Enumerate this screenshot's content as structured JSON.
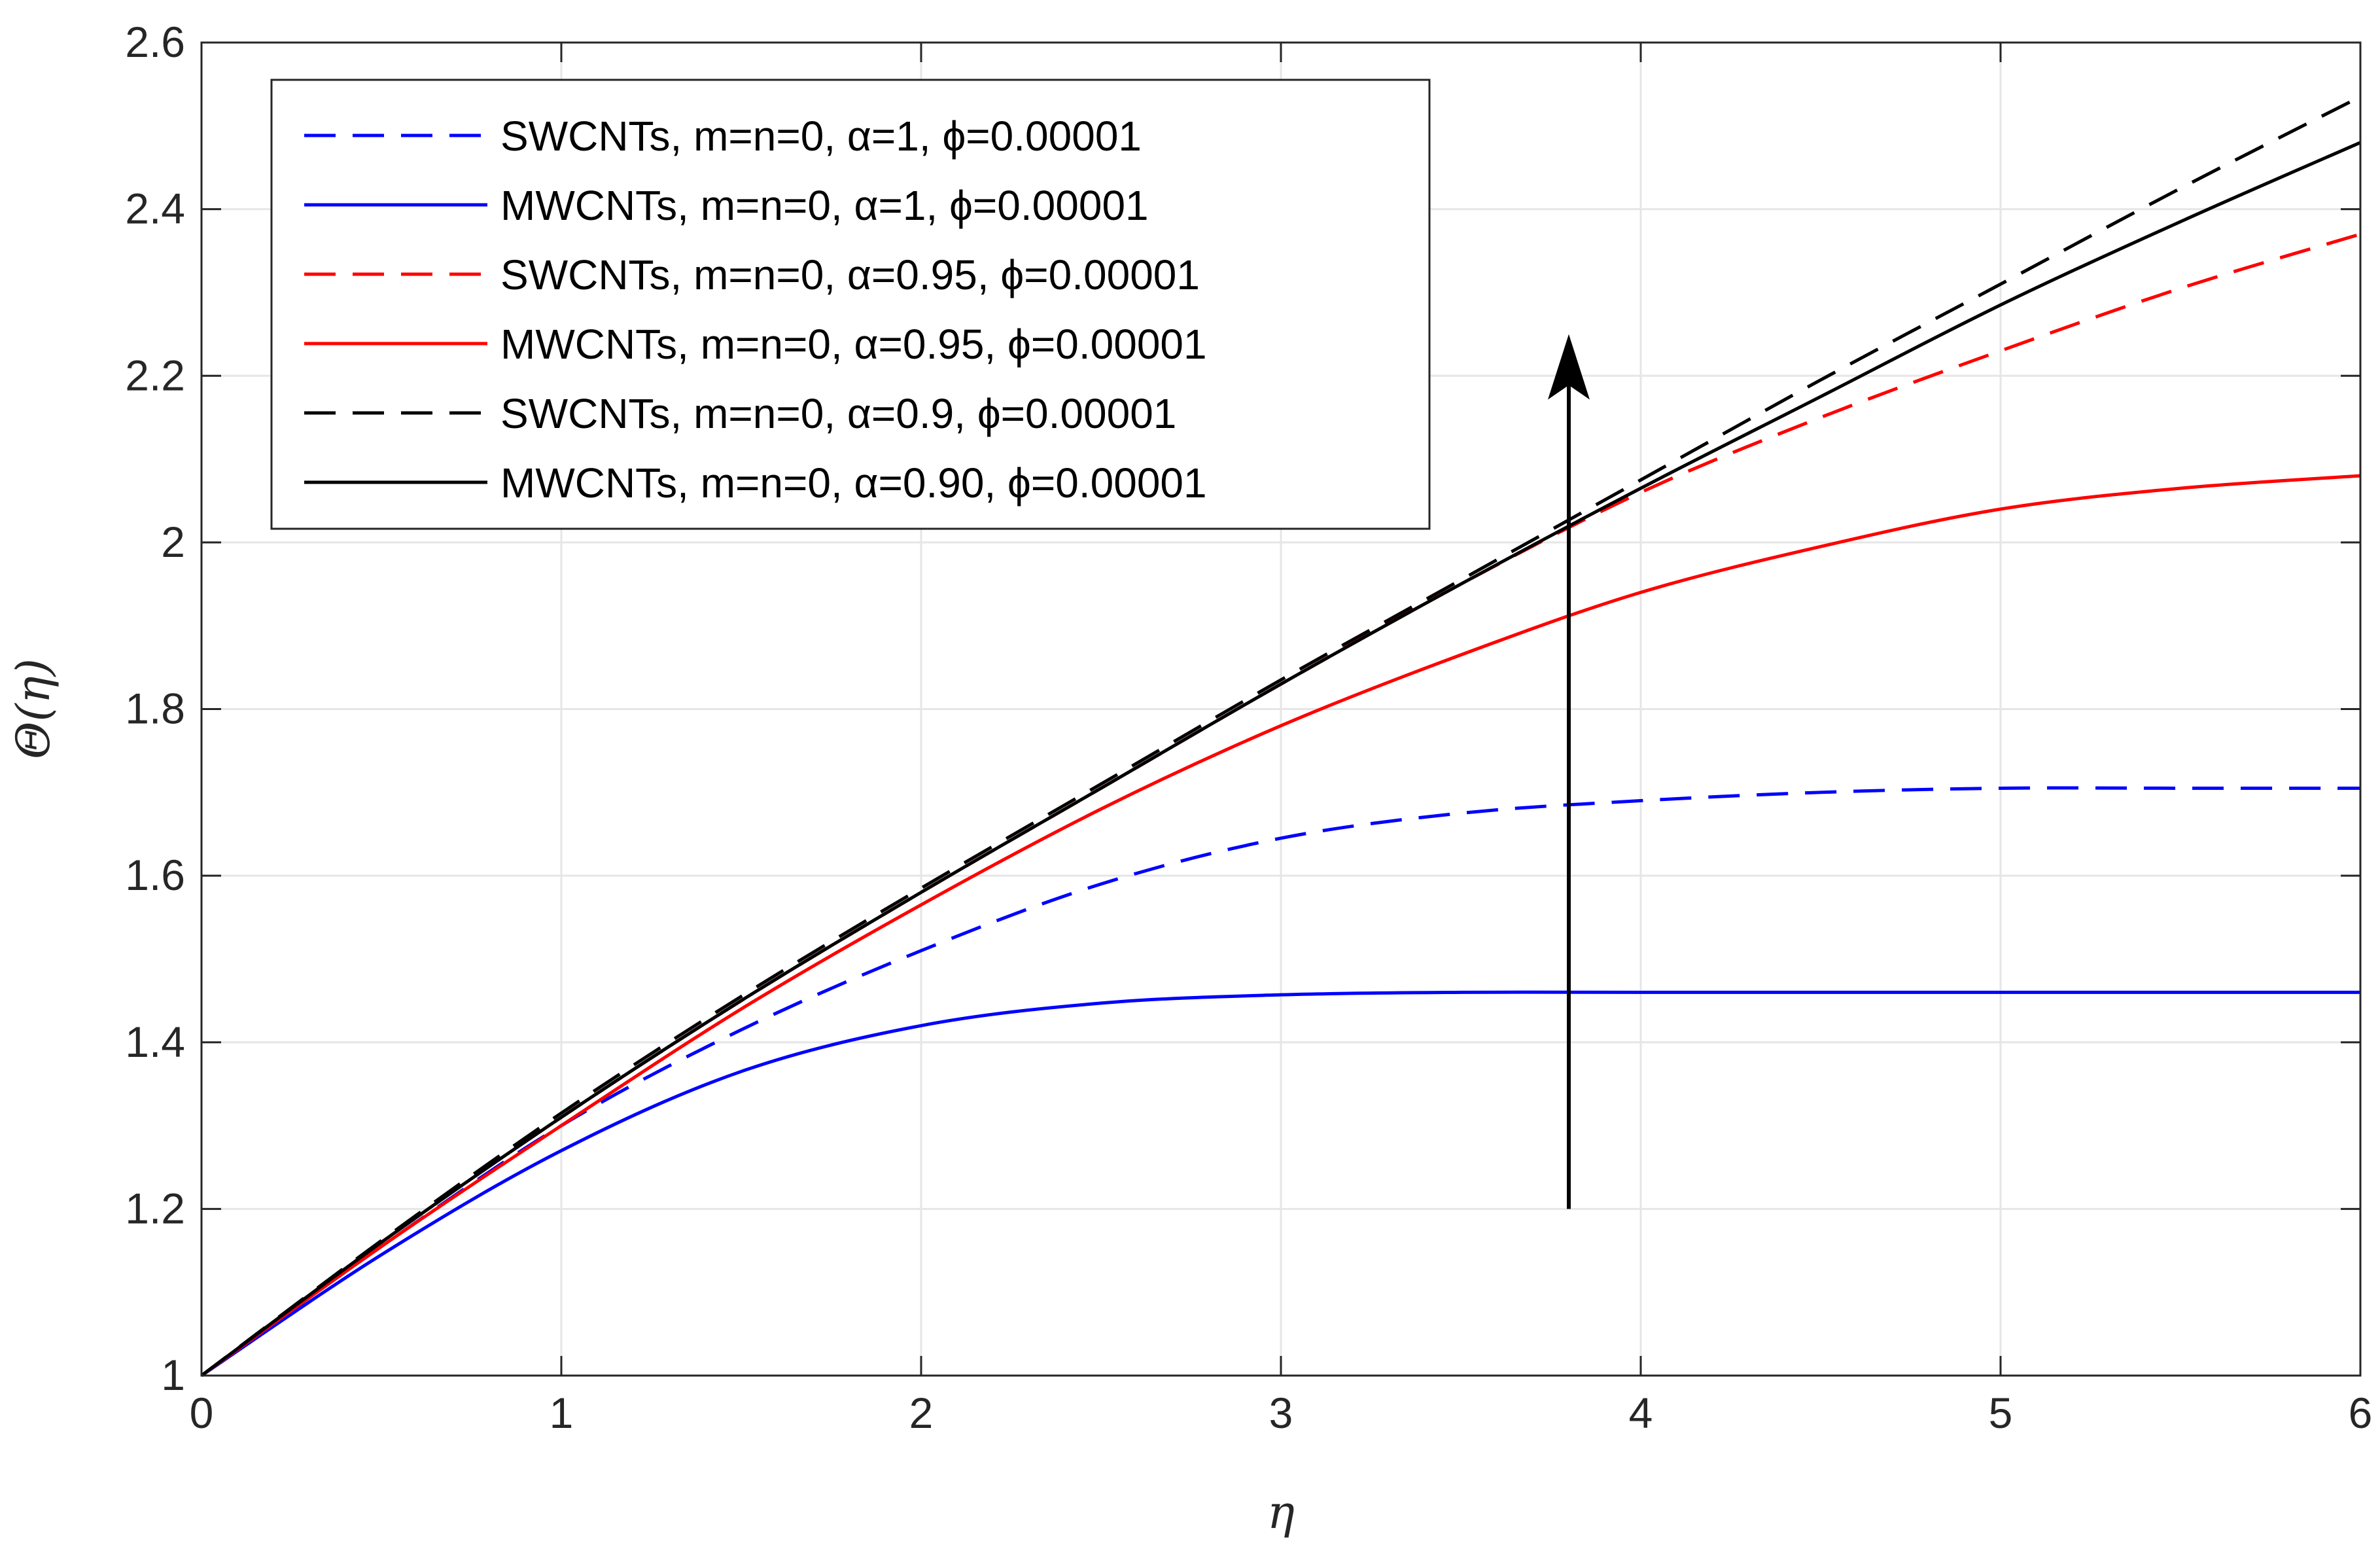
{
  "chart_data": {
    "type": "line",
    "title": "",
    "xlabel": "η",
    "ylabel": "Θ(η)",
    "xlim": [
      0,
      6
    ],
    "ylim": [
      1,
      2.6
    ],
    "xticks": [
      "0",
      "1",
      "2",
      "3",
      "4",
      "5",
      "6"
    ],
    "yticks": [
      "1",
      "1.2",
      "1.4",
      "1.6",
      "1.8",
      "2",
      "2.2",
      "2.4",
      "2.6"
    ],
    "grid": true,
    "legend_position": "top-left",
    "annotation": "arrow pointing upward at η≈3.8 from Θ≈1.2 to Θ≈2.25",
    "arrow": {
      "x": 3.8,
      "y_start": 1.2,
      "y_end": 2.25
    },
    "x": [
      0,
      0.5,
      1,
      1.5,
      2,
      2.5,
      3,
      3.5,
      4,
      4.5,
      5,
      5.5,
      6
    ],
    "series": [
      {
        "name": "SWCNTs, m=n=0, α=1, ϕ=0.00001",
        "color": "#0000ff",
        "dash": "dashed",
        "values": [
          1.0,
          1.155,
          1.3,
          1.415,
          1.51,
          1.59,
          1.645,
          1.675,
          1.69,
          1.7,
          1.705,
          1.705,
          1.705
        ]
      },
      {
        "name": "MWCNTs, m=n=0, α=1, ϕ=0.00001",
        "color": "#0000ff",
        "dash": "solid",
        "values": [
          1.0,
          1.145,
          1.27,
          1.365,
          1.42,
          1.447,
          1.457,
          1.46,
          1.46,
          1.46,
          1.46,
          1.46,
          1.46
        ]
      },
      {
        "name": "SWCNTs, m=n=0, α=0.95, ϕ=0.00001",
        "color": "#ff0000",
        "dash": "dashed",
        "values": [
          1.0,
          1.16,
          1.31,
          1.45,
          1.58,
          1.705,
          1.83,
          1.95,
          2.06,
          2.15,
          2.23,
          2.305,
          2.37
        ]
      },
      {
        "name": "MWCNTs, m=n=0, α=0.95, ϕ=0.00001",
        "color": "#ff0000",
        "dash": "solid",
        "values": [
          1.0,
          1.155,
          1.3,
          1.44,
          1.565,
          1.68,
          1.78,
          1.865,
          1.94,
          1.995,
          2.04,
          2.065,
          2.08
        ]
      },
      {
        "name": "SWCNTs, m=n=0, α=0.9, ϕ=0.00001",
        "color": "#000000",
        "dash": "dashed",
        "values": [
          1.0,
          1.162,
          1.315,
          1.455,
          1.585,
          1.71,
          1.835,
          1.955,
          2.075,
          2.195,
          2.31,
          2.425,
          2.535
        ]
      },
      {
        "name": "MWCNTs, m=n=0, α=0.90, ϕ=0.00001",
        "color": "#000000",
        "dash": "solid",
        "values": [
          1.0,
          1.16,
          1.31,
          1.45,
          1.58,
          1.705,
          1.83,
          1.95,
          2.065,
          2.175,
          2.285,
          2.385,
          2.48
        ]
      }
    ]
  }
}
